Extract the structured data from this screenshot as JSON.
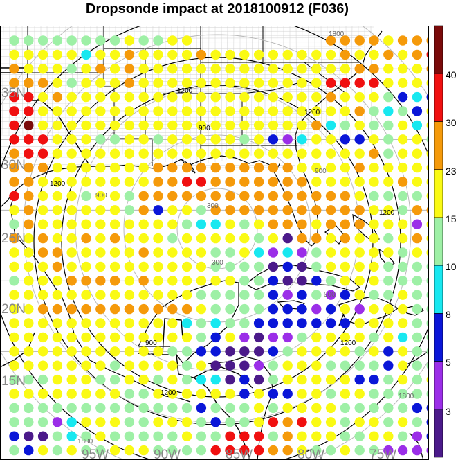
{
  "title": "Dropsonde impact at 2018100912 (F036)",
  "map": {
    "lon_range": [
      -101,
      -70
    ],
    "lat_range": [
      9.5,
      38.5
    ],
    "lat_labels": [
      "35N",
      "30N",
      "25N",
      "20N",
      "15N"
    ],
    "lon_labels": [
      "95W",
      "90W",
      "85W",
      "80W",
      "75W"
    ],
    "lat_label_values": [
      35,
      30,
      25,
      20,
      15
    ],
    "lon_label_values": [
      -95,
      -90,
      -85,
      -80,
      -75
    ],
    "ring_labels_black": [
      "1200",
      "900",
      "300",
      "1800"
    ],
    "ring_labels_gray": [
      "1800",
      "1200",
      "900",
      "300"
    ],
    "center": {
      "lon": -86.2,
      "lat": 25.3
    }
  },
  "colorbar": {
    "colors": [
      "#4b1a8a",
      "#9b2ee8",
      "#0a16d8",
      "#18e8f0",
      "#9ef0a6",
      "#fafa14",
      "#f59a0a",
      "#f01010",
      "#7a0a0a"
    ],
    "labels": [
      "3",
      "5",
      "8",
      "10",
      "15",
      "23",
      "30",
      "40"
    ]
  },
  "chart_data": {
    "type": "scatter",
    "title": "Dropsonde impact at 2018100912 (F036)",
    "grid_lon_start": -100,
    "grid_lon_step": 1,
    "grid_lat_start": 37,
    "grid_lat_step": -1,
    "color_classes": {
      "P": "#4b1a8a",
      "V": "#9b2ee8",
      "B": "#0a16d8",
      "C": "#18e8f0",
      "G": "#9ef0a6",
      "Y": "#fafa14",
      "O": "#f59a0a",
      "R": "#f01010",
      "D": "#7a0a0a"
    },
    "rows": [
      "GGGGGGGGYGGYY.........OOOOYOOOO",
      "YYYYYCYYOYYYYOYYYYYYYYYOYYOYORR",
      "OYYYGYOYOYYYYYYYYYYYYYYYOOYYYOO",
      "OOOYGYYYOYYYYYYYYYYYYYRRRRYYYYY",
      "RRYOYYYYYYYYYYYYYYYYYYOYYYGBCBO",
      "RRYYYYYYYYYYYYYYYYYYYYYYOGCGBYP",
      "RDYYYYYYYYYYYYYYYYYYYOCGYGGYCYY",
      "RRRYYYGGYYGYYYYYGYBVCYYBBYGYYGY",
      "ORRYYYYYYYYYYYYYYYYYYYYYYOGYYYB",
      "OOOYYYYYYYOOOOOOOOOOYYYYOYYYYYO",
      "OOYYYYYYYYOORROOOOOOOYYYYYYOYYY",
      "ROYYYGYYGOOOOOOOOOOOOOOOYGGGGYY",
      "YOYYYYYYGOBYYGOOOOOOOOOOOYYGOOY",
      "GOYYYYYYYYYYGCCYGYOOOYOOOYYYVYO",
      "OYOYYOYOYYYGYYYYYGYPOOYOYYGYOYY",
      "YYOOYYYYYOYYYYGGYCVCVGYYYYYGYYY",
      "YYYOYYYYYYYYYYGGGGPBPGYYYYGGGGG",
      "GYYYOOOOYOYYYYYYGGBPPBGYYYGGGGY",
      "YYYYYYYYYYYYYGGGGGBVBGVBYGGYGGY",
      "YYOOOOOOOOOOOYGGGGBBBVBYVYYYGGG",
      "YYYYYYYYYYYYCGCGGBBBBBBBYYYYGGB",
      "YYYYYYYYYYYYYGBYVPVVGYYYYGYCGGB",
      "YYYYYYYYYYYGGBBPPPBGYYYYGYBYGGY",
      "YYYYYYYGYYYYGYPPPVGYYYGGGGBYGGG",
      "GGGYYYGGYYGYGCCPBPGYYYYYBBGYGYG",
      "YYYYYYYYGGYYYYYYBYBBYYGYYGGGGGG",
      "GGGGGGGGGGGGGBGGGYGYYYYGGGGGBBB",
      "GGGVCYYYGGYYYGBGGYRORYYGYYGYGBB",
      "BPPGCGYGGGGGYGGRRRGOYYYGGYYGVBP",
      "GBYGYGGYYYGGGGRRRROOYGGYGGVVVVY",
      "GGGGGGGGGYYYYRRRRRYOYYYYGVVPPPV"
    ]
  }
}
